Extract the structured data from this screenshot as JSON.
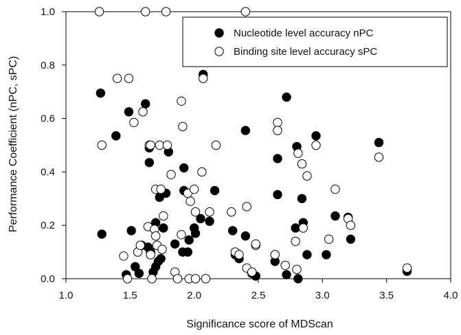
{
  "chart_data": {
    "type": "scatter",
    "title": "",
    "xlabel": "Significance score of MDScan",
    "ylabel": "Performance Coefficient (nPC, sPC)",
    "xlim": [
      1.0,
      4.0
    ],
    "ylim": [
      0.0,
      1.0
    ],
    "xticks": [
      "1.0",
      "1.5",
      "2.0",
      "2.5",
      "3.0",
      "3.5",
      "4.0"
    ],
    "yticks": [
      "0.0",
      "0.2",
      "0.4",
      "0.6",
      "0.8",
      "1.0"
    ],
    "grid": false,
    "legend_position": "top-right",
    "series": [
      {
        "name": "Nucleotide level accuracy nPC",
        "marker": "filled-circle",
        "color": "#000000",
        "points": [
          [
            1.27,
            0.695
          ],
          [
            1.28,
            0.167
          ],
          [
            1.39,
            0.535
          ],
          [
            1.47,
            0.015
          ],
          [
            1.49,
            0.625
          ],
          [
            1.51,
            0.18
          ],
          [
            1.54,
            0.045
          ],
          [
            1.57,
            0.02
          ],
          [
            1.59,
            0.125
          ],
          [
            1.62,
            0.655
          ],
          [
            1.64,
            0.118
          ],
          [
            1.65,
            0.49
          ],
          [
            1.65,
            0.435
          ],
          [
            1.66,
            0.1
          ],
          [
            1.68,
            0.025
          ],
          [
            1.7,
            0.045
          ],
          [
            1.7,
            0.21
          ],
          [
            1.72,
            0.065
          ],
          [
            1.73,
            0.305
          ],
          [
            1.74,
            0.33
          ],
          [
            1.74,
            0.075
          ],
          [
            1.76,
            0.19
          ],
          [
            1.78,
            0.32
          ],
          [
            1.8,
            0.475
          ],
          [
            1.85,
            0.13
          ],
          [
            1.91,
            0.1
          ],
          [
            1.92,
            0.33
          ],
          [
            1.92,
            0.415
          ],
          [
            1.95,
            0.1
          ],
          [
            1.96,
            0.145
          ],
          [
            2.0,
            0.19
          ],
          [
            2.01,
            0.17
          ],
          [
            2.05,
            0.225
          ],
          [
            2.07,
            0.765
          ],
          [
            2.12,
            0.215
          ],
          [
            2.16,
            0.33
          ],
          [
            2.3,
            0.18
          ],
          [
            2.32,
            0.09
          ],
          [
            2.35,
            0.075
          ],
          [
            2.4,
            0.16
          ],
          [
            2.4,
            0.555
          ],
          [
            2.45,
            0.02
          ],
          [
            2.48,
            0.01
          ],
          [
            2.63,
            0.065
          ],
          [
            2.65,
            0.45
          ],
          [
            2.65,
            0.315
          ],
          [
            2.72,
            0.68
          ],
          [
            2.72,
            0.015
          ],
          [
            2.79,
            0.19
          ],
          [
            2.8,
            0.495
          ],
          [
            2.81,
            0.0
          ],
          [
            2.84,
            0.3
          ],
          [
            2.85,
            0.21
          ],
          [
            2.88,
            0.09
          ],
          [
            2.95,
            0.535
          ],
          [
            3.03,
            0.09
          ],
          [
            3.1,
            0.235
          ],
          [
            3.2,
            0.23
          ],
          [
            3.22,
            0.148
          ],
          [
            3.44,
            0.51
          ],
          [
            3.66,
            0.028
          ]
        ]
      },
      {
        "name": "Binding site level accuracy sPC",
        "marker": "open-circle",
        "color": "#000000",
        "points": [
          [
            1.26,
            1.0
          ],
          [
            1.28,
            0.5
          ],
          [
            1.4,
            0.75
          ],
          [
            1.45,
            0.085
          ],
          [
            1.48,
            0.0
          ],
          [
            1.49,
            0.75
          ],
          [
            1.53,
            0.585
          ],
          [
            1.56,
            0.1
          ],
          [
            1.58,
            0.125
          ],
          [
            1.6,
            0.625
          ],
          [
            1.62,
            1.0
          ],
          [
            1.64,
            0.195
          ],
          [
            1.65,
            0.5
          ],
          [
            1.66,
            0.5
          ],
          [
            1.66,
            0.09
          ],
          [
            1.67,
            0.0
          ],
          [
            1.69,
            0.185
          ],
          [
            1.7,
            0.16
          ],
          [
            1.7,
            0.335
          ],
          [
            1.71,
            0.125
          ],
          [
            1.73,
            0.5
          ],
          [
            1.74,
            0.335
          ],
          [
            1.75,
            0.11
          ],
          [
            1.76,
            0.235
          ],
          [
            1.78,
            1.0
          ],
          [
            1.79,
            0.5
          ],
          [
            1.82,
            0.39
          ],
          [
            1.85,
            0.025
          ],
          [
            1.87,
            0.0
          ],
          [
            1.9,
            0.165
          ],
          [
            1.9,
            0.665
          ],
          [
            1.91,
            0.57
          ],
          [
            1.95,
            0.32
          ],
          [
            1.96,
            0.0
          ],
          [
            1.97,
            0.29
          ],
          [
            2.0,
            0.335
          ],
          [
            2.01,
            0.25
          ],
          [
            2.01,
            0.0
          ],
          [
            2.06,
            0.4
          ],
          [
            2.07,
            0.75
          ],
          [
            2.09,
            0.0
          ],
          [
            2.12,
            0.25
          ],
          [
            2.17,
            0.5
          ],
          [
            2.29,
            0.25
          ],
          [
            2.32,
            0.1
          ],
          [
            2.35,
            0.09
          ],
          [
            2.4,
            1.0
          ],
          [
            2.41,
            0.27
          ],
          [
            2.41,
            0.04
          ],
          [
            2.45,
            0.025
          ],
          [
            2.48,
            0.125
          ],
          [
            2.48,
            0.13
          ],
          [
            2.63,
            0.09
          ],
          [
            2.65,
            0.585
          ],
          [
            2.65,
            0.555
          ],
          [
            2.71,
            0.05
          ],
          [
            2.79,
            0.14
          ],
          [
            2.8,
            0.035
          ],
          [
            2.81,
            0.47
          ],
          [
            2.84,
            0.43
          ],
          [
            2.85,
            0.19
          ],
          [
            2.88,
            0.385
          ],
          [
            2.95,
            0.5
          ],
          [
            3.05,
            0.148
          ],
          [
            3.1,
            0.335
          ],
          [
            3.2,
            0.225
          ],
          [
            3.22,
            0.2
          ],
          [
            3.44,
            0.455
          ],
          [
            3.66,
            0.04
          ]
        ]
      }
    ]
  }
}
